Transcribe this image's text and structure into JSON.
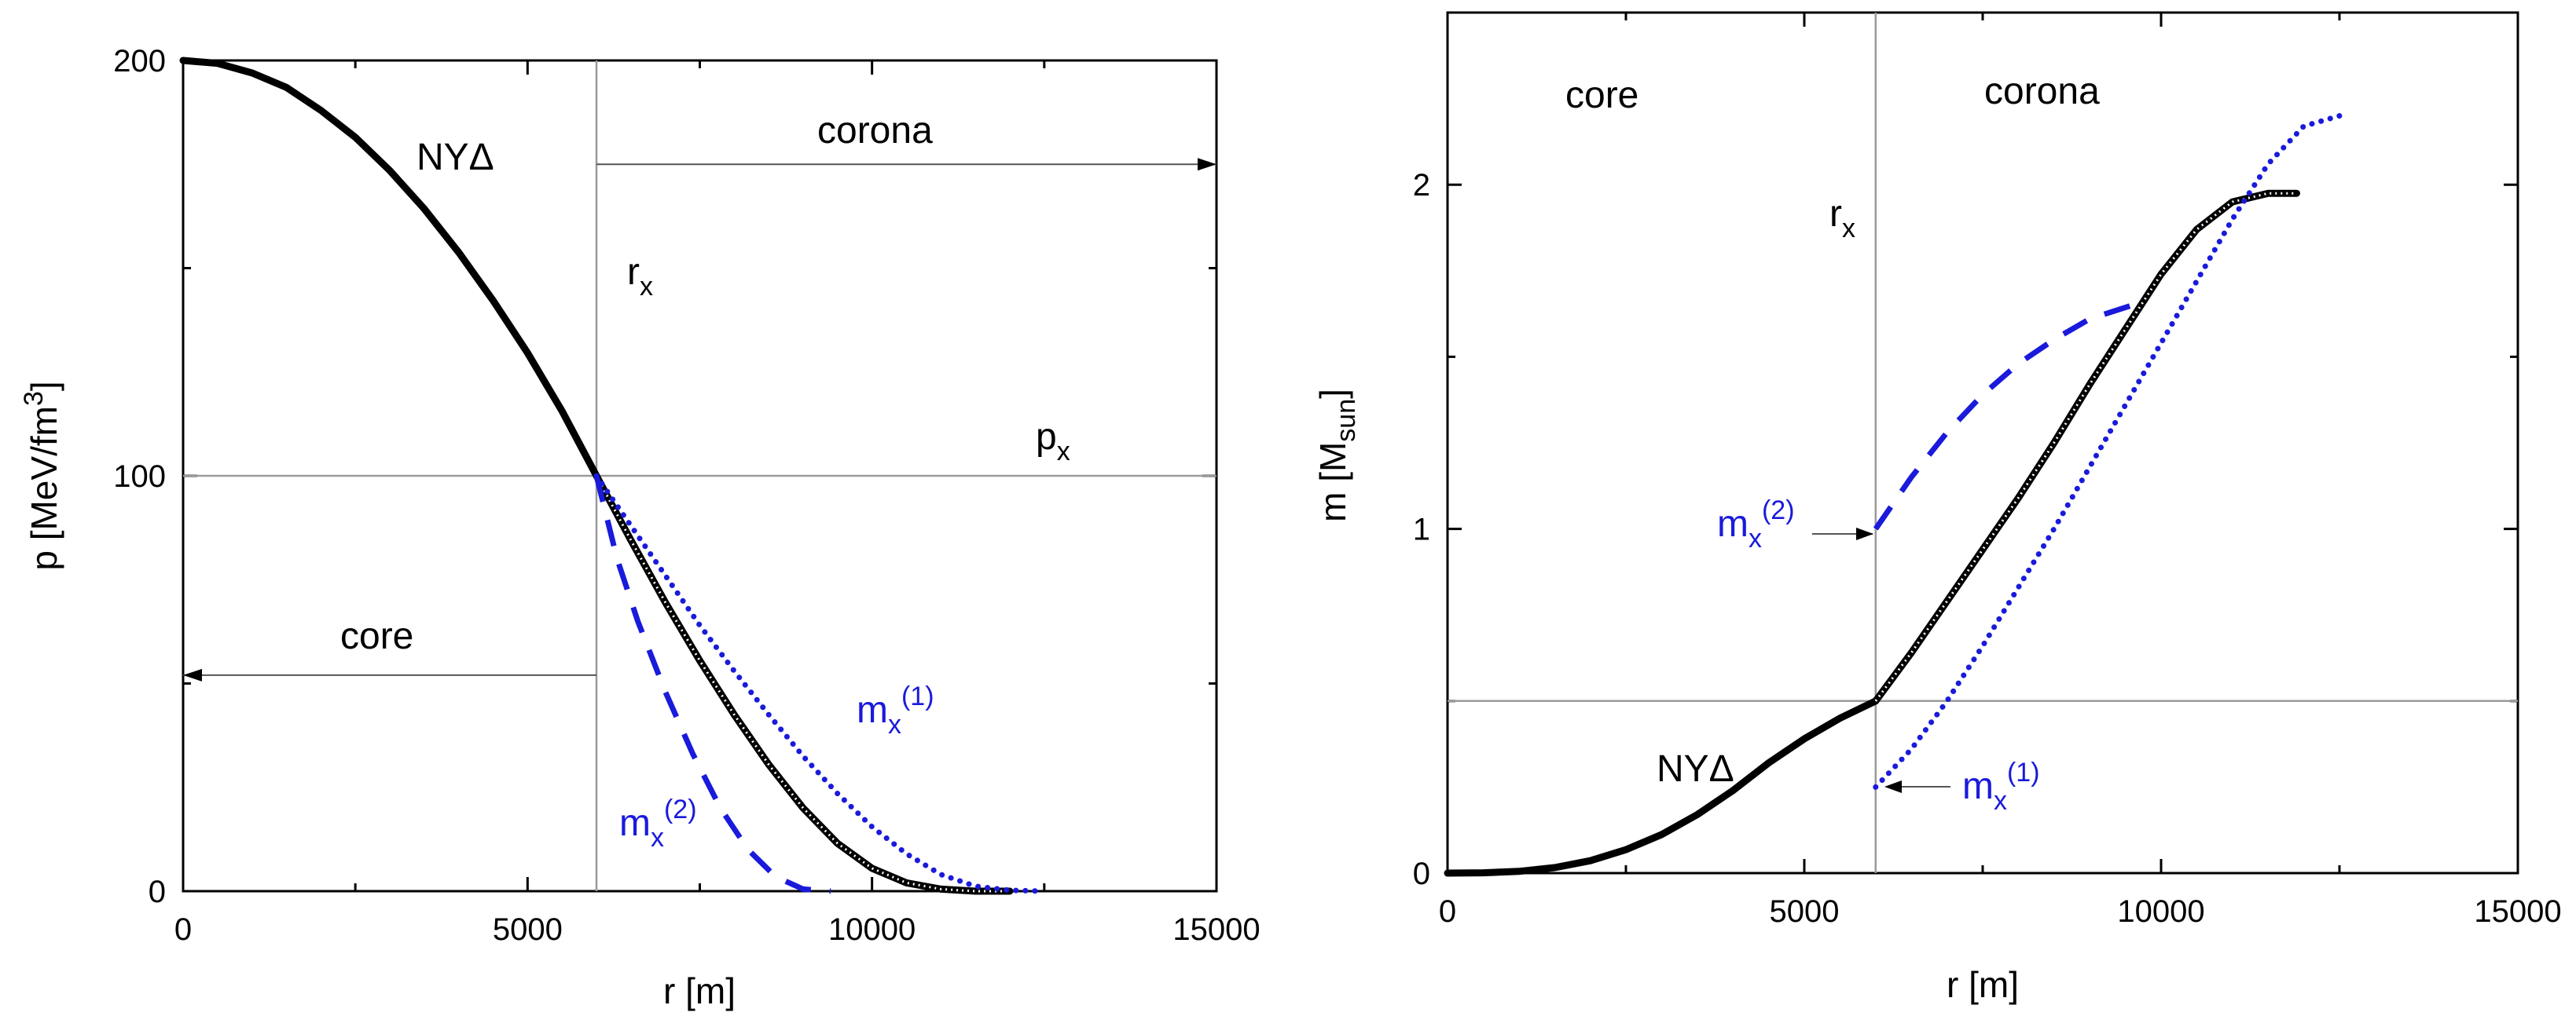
{
  "chart_data": [
    {
      "type": "line",
      "title": "",
      "xlabel": "r [m]",
      "ylabel_parts": {
        "main": "p [MeV/fm",
        "sup": "3",
        "tail": "]"
      },
      "xlim": [
        0,
        15000
      ],
      "ylim": [
        0,
        200
      ],
      "xticks": [
        0,
        5000,
        10000,
        15000
      ],
      "yticks": [
        0,
        100,
        200
      ],
      "x_tick_labels": [
        "0",
        "5000",
        "10000",
        "15000"
      ],
      "y_tick_labels": [
        "0",
        "100",
        "200"
      ],
      "reference_lines": {
        "vertical_x": 6000,
        "horizontal_y": 100
      },
      "arrows": [
        {
          "from": [
            6000,
            175
          ],
          "to": [
            15000,
            175
          ]
        },
        {
          "from": [
            6000,
            52
          ],
          "to": [
            0,
            52
          ]
        }
      ],
      "series": [
        {
          "name": "NYΔ",
          "style": "solid-black",
          "x": [
            0,
            500,
            1000,
            1500,
            2000,
            2500,
            3000,
            3500,
            4000,
            4500,
            5000,
            5500,
            6000,
            6500,
            7000,
            7500,
            8000,
            8500,
            9000,
            9500,
            10000,
            10500,
            11000,
            11500,
            12000
          ],
          "y": [
            200,
            199.3,
            197,
            193.5,
            188,
            181.5,
            173.5,
            164.3,
            153.8,
            142.2,
            129.6,
            115.6,
            100,
            84.5,
            69.5,
            55.5,
            42.5,
            30.5,
            20,
            11.5,
            5.5,
            2,
            0.5,
            0,
            0
          ]
        },
        {
          "name": "m_x(1)",
          "style": "dotted-blue",
          "x": [
            6000,
            6500,
            7000,
            7500,
            8000,
            8500,
            9000,
            9500,
            10000,
            10500,
            11000,
            11500,
            12000,
            12500
          ],
          "y": [
            100,
            88,
            76,
            64,
            53,
            42.5,
            32.5,
            23.5,
            15.5,
            9,
            4,
            1.2,
            0.2,
            0
          ]
        },
        {
          "name": "m_x(2)",
          "style": "dashed-blue",
          "x": [
            6000,
            6300,
            6600,
            7000,
            7400,
            7800,
            8200,
            8600,
            9000,
            9400
          ],
          "y": [
            100,
            80,
            65,
            48,
            33,
            20,
            10,
            3.5,
            0.5,
            0
          ]
        }
      ],
      "labels": {
        "nyd": "NYΔ",
        "corona": "corona",
        "core": "core",
        "rx_main": "r",
        "rx_sub": "x",
        "px_main": "p",
        "px_sub": "x",
        "mx1_main": "m",
        "mx1_sub": "x",
        "mx1_sup": "(1)",
        "mx2_main": "m",
        "mx2_sub": "x",
        "mx2_sup": "(2)"
      }
    },
    {
      "type": "line",
      "title": "",
      "xlabel": "r [m]",
      "ylabel_parts": {
        "main": "m [M",
        "sub": "sun",
        "tail": "]"
      },
      "xlim": [
        0,
        15000
      ],
      "ylim": [
        0,
        2.5
      ],
      "xticks": [
        0,
        5000,
        10000,
        15000
      ],
      "yticks": [
        0,
        1,
        2
      ],
      "x_tick_labels": [
        "0",
        "5000",
        "10000",
        "15000"
      ],
      "y_tick_labels": [
        "0",
        "1",
        "2"
      ],
      "reference_lines": {
        "vertical_x": 6000,
        "horizontal_y": 0.5
      },
      "arrows": [
        {
          "from": [
            6000,
            1.0
          ],
          "to": [
            6000,
            1.0
          ]
        },
        {
          "from": [
            6000,
            0.25
          ],
          "to": [
            6000,
            0.25
          ]
        }
      ],
      "series": [
        {
          "name": "NYΔ",
          "style": "solid-black",
          "x": [
            0,
            500,
            1000,
            1500,
            2000,
            2500,
            3000,
            3500,
            4000,
            4500,
            5000,
            5500,
            6000,
            6500,
            7000,
            7500,
            8000,
            8500,
            9000,
            9500,
            10000,
            10500,
            11000,
            11500,
            11900
          ],
          "y": [
            0,
            0.001,
            0.005,
            0.016,
            0.036,
            0.068,
            0.112,
            0.17,
            0.24,
            0.32,
            0.39,
            0.45,
            0.5,
            0.64,
            0.79,
            0.94,
            1.09,
            1.25,
            1.42,
            1.58,
            1.74,
            1.87,
            1.95,
            1.975,
            1.975
          ]
        },
        {
          "name": "m_x(1)",
          "style": "dotted-blue",
          "x": [
            6000,
            6500,
            7000,
            7500,
            8000,
            8500,
            9000,
            9500,
            10000,
            10500,
            11000,
            11500,
            12000,
            12500
          ],
          "y": [
            0.25,
            0.36,
            0.5,
            0.66,
            0.83,
            1.0,
            1.18,
            1.36,
            1.54,
            1.72,
            1.9,
            2.06,
            2.17,
            2.2
          ]
        },
        {
          "name": "m_x(2)",
          "style": "dashed-blue",
          "x": [
            6000,
            6500,
            7000,
            7500,
            8000,
            8500,
            9000,
            9600
          ],
          "y": [
            1.0,
            1.15,
            1.28,
            1.39,
            1.48,
            1.55,
            1.61,
            1.65
          ]
        }
      ],
      "labels": {
        "nyd": "NYΔ",
        "corona": "corona",
        "core": "core",
        "rx_main": "r",
        "rx_sub": "x",
        "mx1_main": "m",
        "mx1_sub": "x",
        "mx1_sup": "(1)",
        "mx2_main": "m",
        "mx2_sub": "x",
        "mx2_sup": "(2)"
      }
    }
  ]
}
